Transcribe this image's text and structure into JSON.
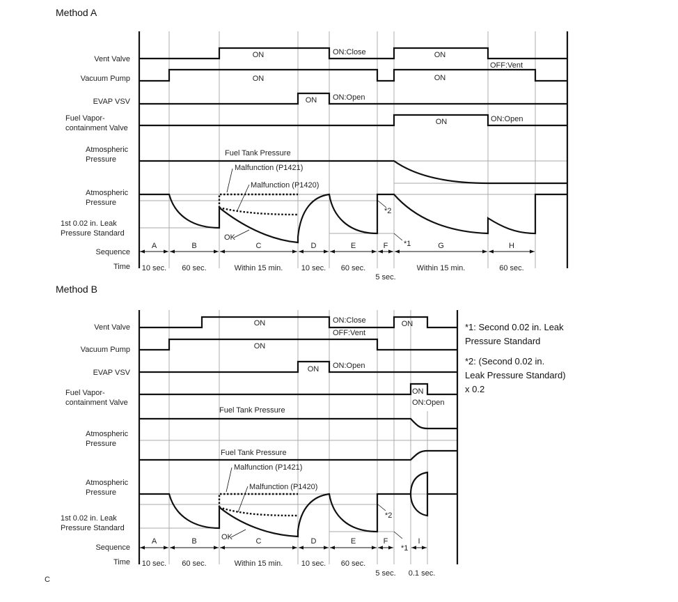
{
  "method_a": {
    "title": "Method A",
    "rows": {
      "vent_valve": "Vent Valve",
      "vacuum_pump": "Vacuum Pump",
      "evap_vsv": "EVAP VSV",
      "fvcv_1": "Fuel Vapor-",
      "fvcv_2": "containment  Valve",
      "atm1_1": "Atmospheric",
      "atm1_2": "Pressure",
      "atm2_1": "Atmospheric",
      "atm2_2": "Pressure",
      "std_1": "1st 0.02 in. Leak",
      "std_2": "Pressure Standard",
      "sequence": "Sequence",
      "time": "Time"
    },
    "annotations": {
      "vent_on_1": "ON",
      "vent_close": "ON:Close",
      "vent_on_2": "ON",
      "vent_off": "OFF:Vent",
      "pump_on_1": "ON",
      "pump_on_2": "ON",
      "evap_on": "ON",
      "evap_open": "ON:Open",
      "fvcv_on": "ON",
      "fvcv_open": "ON:Open",
      "fuel_tank_pressure": "Fuel Tank Pressure",
      "p1421": "Malfunction (P1421)",
      "p1420": "Malfunction (P1420)",
      "ok": "OK",
      "star2": "*2",
      "star1": "*1"
    },
    "sequence": [
      "A",
      "B",
      "C",
      "D",
      "E",
      "F",
      "G",
      "H"
    ],
    "time": [
      "10 sec.",
      "60 sec.",
      "Within 15 min.",
      "10 sec.",
      "60 sec.",
      "5 sec.",
      "Within 15 min.",
      "60 sec."
    ]
  },
  "method_b": {
    "title": "Method B",
    "rows": {
      "vent_valve": "Vent Valve",
      "vacuum_pump": "Vacuum Pump",
      "evap_vsv": "EVAP VSV",
      "fvcv_1": "Fuel Vapor-",
      "fvcv_2": "containment  Valve",
      "atm1_1": "Atmospheric",
      "atm1_2": "Pressure",
      "atm2_1": "Atmospheric",
      "atm2_2": "Pressure",
      "std_1": "1st 0.02 in. Leak",
      "std_2": "Pressure Standard",
      "sequence": "Sequence",
      "time": "Time"
    },
    "annotations": {
      "vent_on_1": "ON",
      "vent_close": "ON:Close",
      "vent_off": "OFF:Vent",
      "vent_on_2": "ON",
      "pump_on": "ON",
      "evap_on": "ON",
      "evap_open": "ON:Open",
      "fvcv_on": "ON",
      "fvcv_open": "ON:Open",
      "fuel_tank_pressure_1": "Fuel Tank Pressure",
      "fuel_tank_pressure_2": "Fuel Tank Pressure",
      "p1421": "Malfunction (P1421)",
      "p1420": "Malfunction (P1420)",
      "ok": "OK",
      "star2": "*2",
      "star1": "*1"
    },
    "sequence": [
      "A",
      "B",
      "C",
      "D",
      "E",
      "F",
      "I"
    ],
    "time": [
      "10 sec.",
      "60 sec.",
      "Within 15 min.",
      "10 sec.",
      "60 sec.",
      "5 sec.",
      "0.1 sec."
    ]
  },
  "notes": {
    "n1_1": "*1: Second 0.02 in. Leak",
    "n1_2": "Pressure Standard",
    "n2_1": "*2: (Second 0.02 in.",
    "n2_2": "Leak Pressure Standard)",
    "n2_3": "x 0.2"
  },
  "footer_code": "C"
}
